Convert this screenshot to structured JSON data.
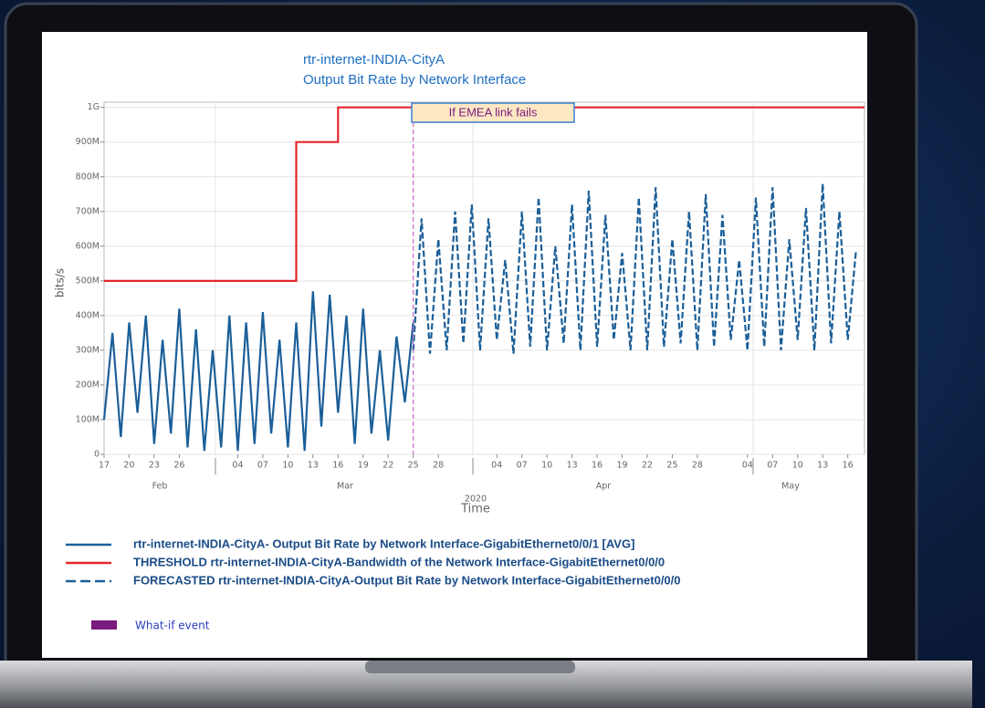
{
  "chart_data": {
    "type": "line",
    "title": "rtr-internet-INDIA-CityA",
    "subtitle": "Output Bit Rate by Network Interface",
    "y_label": "bits/s",
    "x_label": "Time",
    "year": "2020",
    "months": [
      "Feb",
      "Mar",
      "Apr",
      "May"
    ],
    "xlim": [
      "2020-02-17",
      "2020-05-18"
    ],
    "ylim": [
      0,
      1015000000
    ],
    "grid": true,
    "yticks": [
      {
        "value": 0,
        "label": "0"
      },
      {
        "value": 100000000,
        "label": "100M"
      },
      {
        "value": 200000000,
        "label": "200M"
      },
      {
        "value": 300000000,
        "label": "300M"
      },
      {
        "value": 400000000,
        "label": "400M"
      },
      {
        "value": 500000000,
        "label": "500M"
      },
      {
        "value": 600000000,
        "label": "600M"
      },
      {
        "value": 700000000,
        "label": "700M"
      },
      {
        "value": 800000000,
        "label": "800M"
      },
      {
        "value": 900000000,
        "label": "900M"
      },
      {
        "value": 1000000000,
        "label": "1G"
      }
    ],
    "xticks": [
      {
        "value": "2020-02-17",
        "label": "17"
      },
      {
        "value": "2020-02-20",
        "label": "20"
      },
      {
        "value": "2020-02-23",
        "label": "23"
      },
      {
        "value": "2020-02-26",
        "label": "26"
      },
      {
        "value": "2020-03-04",
        "label": "04"
      },
      {
        "value": "2020-03-07",
        "label": "07"
      },
      {
        "value": "2020-03-10",
        "label": "10"
      },
      {
        "value": "2020-03-13",
        "label": "13"
      },
      {
        "value": "2020-03-16",
        "label": "16"
      },
      {
        "value": "2020-03-19",
        "label": "19"
      },
      {
        "value": "2020-03-22",
        "label": "22"
      },
      {
        "value": "2020-03-25",
        "label": "25"
      },
      {
        "value": "2020-03-28",
        "label": "28"
      },
      {
        "value": "2020-04-04",
        "label": "04"
      },
      {
        "value": "2020-04-07",
        "label": "07"
      },
      {
        "value": "2020-04-10",
        "label": "10"
      },
      {
        "value": "2020-04-13",
        "label": "13"
      },
      {
        "value": "2020-04-16",
        "label": "16"
      },
      {
        "value": "2020-04-19",
        "label": "19"
      },
      {
        "value": "2020-04-22",
        "label": "22"
      },
      {
        "value": "2020-04-25",
        "label": "25"
      },
      {
        "value": "2020-04-28",
        "label": "28"
      },
      {
        "value": "2020-05-04",
        "label": "04"
      },
      {
        "value": "2020-05-07",
        "label": "07"
      },
      {
        "value": "2020-05-10",
        "label": "10"
      },
      {
        "value": "2020-05-13",
        "label": "13"
      },
      {
        "value": "2020-05-16",
        "label": "16"
      }
    ],
    "series": [
      {
        "name": "rtr-internet-INDIA-CityA- Output Bit Rate by Network Interface-GigabitEthernet0/0/1 [AVG]",
        "color": "#1b5f98",
        "dash": false,
        "x": [
          "2020-02-17",
          "2020-02-18",
          "2020-02-19",
          "2020-02-20",
          "2020-02-21",
          "2020-02-22",
          "2020-02-23",
          "2020-02-24",
          "2020-02-25",
          "2020-02-26",
          "2020-02-27",
          "2020-02-28",
          "2020-02-29",
          "2020-03-01",
          "2020-03-02",
          "2020-03-03",
          "2020-03-04",
          "2020-03-05",
          "2020-03-06",
          "2020-03-07",
          "2020-03-08",
          "2020-03-09",
          "2020-03-10",
          "2020-03-11",
          "2020-03-12",
          "2020-03-13",
          "2020-03-14",
          "2020-03-15",
          "2020-03-16",
          "2020-03-17",
          "2020-03-18",
          "2020-03-19",
          "2020-03-20",
          "2020-03-21",
          "2020-03-22",
          "2020-03-23",
          "2020-03-24",
          "2020-03-25"
        ],
        "values": [
          100000000.0,
          350000000.0,
          50000000.0,
          380000000.0,
          120000000.0,
          400000000.0,
          30000000.0,
          330000000.0,
          60000000.0,
          420000000.0,
          20000000.0,
          360000000.0,
          10000000.0,
          300000000.0,
          20000000.0,
          400000000.0,
          10000000.0,
          380000000.0,
          30000000.0,
          410000000.0,
          60000000.0,
          330000000.0,
          20000000.0,
          380000000.0,
          10000000.0,
          470000000.0,
          80000000.0,
          460000000.0,
          120000000.0,
          400000000.0,
          30000000.0,
          420000000.0,
          60000000.0,
          300000000.0,
          40000000.0,
          340000000.0,
          150000000.0,
          380000000.0
        ]
      },
      {
        "name": "THRESHOLD rtr-internet-INDIA-CityA-Bandwidth of the Network Interface-GigabitEthernet0/0/0",
        "color": "#e2262b",
        "dash": false,
        "x": [
          "2020-02-17",
          "2020-03-11",
          "2020-03-11",
          "2020-03-16",
          "2020-03-16",
          "2020-05-18"
        ],
        "values": [
          500000000.0,
          500000000.0,
          900000000.0,
          900000000.0,
          1000000000.0,
          1000000000.0
        ]
      },
      {
        "name": "FORECASTED rtr-internet-INDIA-CityA-Output Bit Rate by Network Interface-GigabitEthernet0/0/0",
        "color": "#1b5f98",
        "dash": true,
        "x": [
          "2020-03-25",
          "2020-03-26",
          "2020-03-27",
          "2020-03-28",
          "2020-03-29",
          "2020-03-30",
          "2020-03-31",
          "2020-04-01",
          "2020-04-02",
          "2020-04-03",
          "2020-04-04",
          "2020-04-05",
          "2020-04-06",
          "2020-04-07",
          "2020-04-08",
          "2020-04-09",
          "2020-04-10",
          "2020-04-11",
          "2020-04-12",
          "2020-04-13",
          "2020-04-14",
          "2020-04-15",
          "2020-04-16",
          "2020-04-17",
          "2020-04-18",
          "2020-04-19",
          "2020-04-20",
          "2020-04-21",
          "2020-04-22",
          "2020-04-23",
          "2020-04-24",
          "2020-04-25",
          "2020-04-26",
          "2020-04-27",
          "2020-04-28",
          "2020-04-29",
          "2020-04-30",
          "2020-05-01",
          "2020-05-02",
          "2020-05-03",
          "2020-05-04",
          "2020-05-05",
          "2020-05-06",
          "2020-05-07",
          "2020-05-08",
          "2020-05-09",
          "2020-05-10",
          "2020-05-11",
          "2020-05-12",
          "2020-05-13",
          "2020-05-14",
          "2020-05-15",
          "2020-05-16",
          "2020-05-17"
        ],
        "values": [
          300000000.0,
          680000000.0,
          290000000.0,
          620000000.0,
          300000000.0,
          700000000.0,
          320000000.0,
          720000000.0,
          300000000.0,
          680000000.0,
          330000000.0,
          560000000.0,
          290000000.0,
          700000000.0,
          310000000.0,
          740000000.0,
          300000000.0,
          600000000.0,
          320000000.0,
          720000000.0,
          300000000.0,
          760000000.0,
          310000000.0,
          690000000.0,
          330000000.0,
          580000000.0,
          300000000.0,
          740000000.0,
          300000000.0,
          770000000.0,
          310000000.0,
          620000000.0,
          320000000.0,
          700000000.0,
          300000000.0,
          750000000.0,
          310000000.0,
          690000000.0,
          330000000.0,
          560000000.0,
          300000000.0,
          740000000.0,
          310000000.0,
          770000000.0,
          300000000.0,
          620000000.0,
          330000000.0,
          710000000.0,
          300000000.0,
          780000000.0,
          320000000.0,
          700000000.0,
          330000000.0,
          590000000.0
        ]
      }
    ],
    "event": {
      "name": "What-if event",
      "annotation": "If EMEA link fails",
      "x": "2020-03-25",
      "color": "#7b1a7e"
    }
  }
}
